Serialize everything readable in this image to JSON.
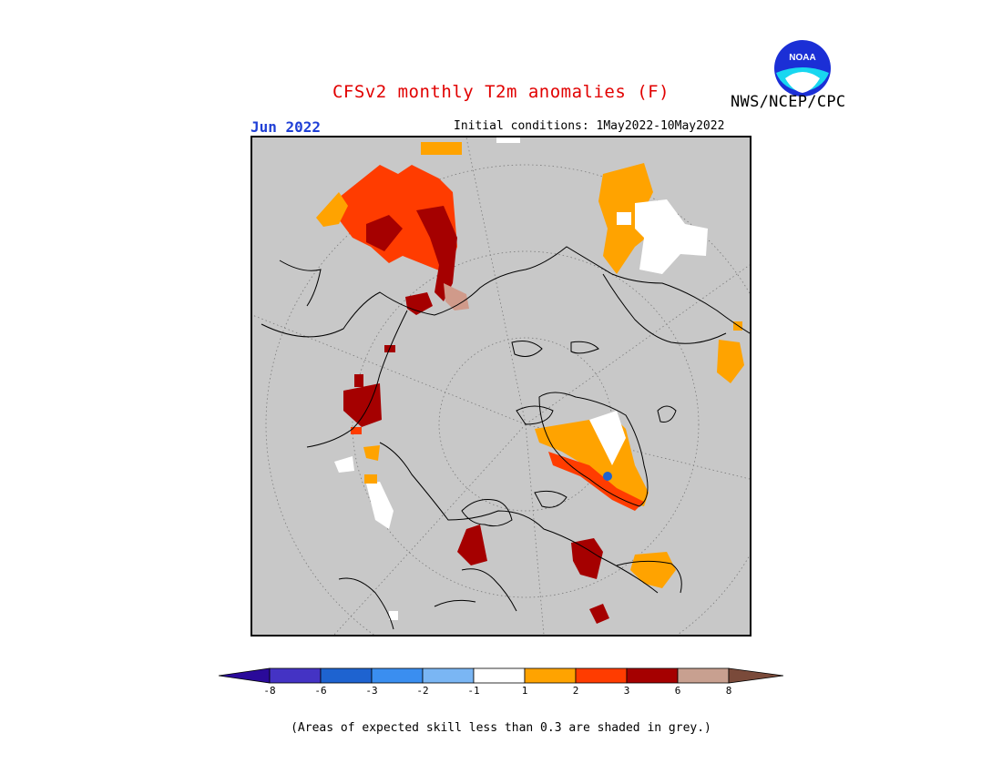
{
  "header": {
    "title": "CFSv2 monthly T2m anomalies (F)",
    "agency": "NWS/NCEP/CPC",
    "logo_icon": "noaa-logo-icon",
    "logo_text": "NOAA",
    "month": "Jun 2022",
    "initial_conditions": "Initial conditions: 1May2022-10May2022"
  },
  "map": {
    "projection": "north-polar-stereographic",
    "background_color": "#c8c8c8",
    "outline_color": "#000000"
  },
  "legend": {
    "ticks": [
      "-8",
      "-6",
      "-3",
      "-2",
      "-1",
      "1",
      "2",
      "3",
      "6",
      "8"
    ],
    "colors": [
      {
        "range": "< -8",
        "hex": "#2a0a9a"
      },
      {
        "range": "-8 to -6",
        "hex": "#4433c4"
      },
      {
        "range": "-6 to -3",
        "hex": "#1e63d0"
      },
      {
        "range": "-3 to -2",
        "hex": "#3a8ef0"
      },
      {
        "range": "-2 to -1",
        "hex": "#7ab6f4"
      },
      {
        "range": "-1 to 1",
        "hex": "#ffffff"
      },
      {
        "range": "1 to 2",
        "hex": "#ffa300"
      },
      {
        "range": "2 to 3",
        "hex": "#ff3c00"
      },
      {
        "range": "3 to 6",
        "hex": "#a50000"
      },
      {
        "range": "6 to 8",
        "hex": "#c8a090"
      },
      {
        "range": "> 8",
        "hex": "#7a4a3a"
      }
    ]
  },
  "footnote": "(Areas of expected skill less than 0.3 are shaded in grey.)"
}
